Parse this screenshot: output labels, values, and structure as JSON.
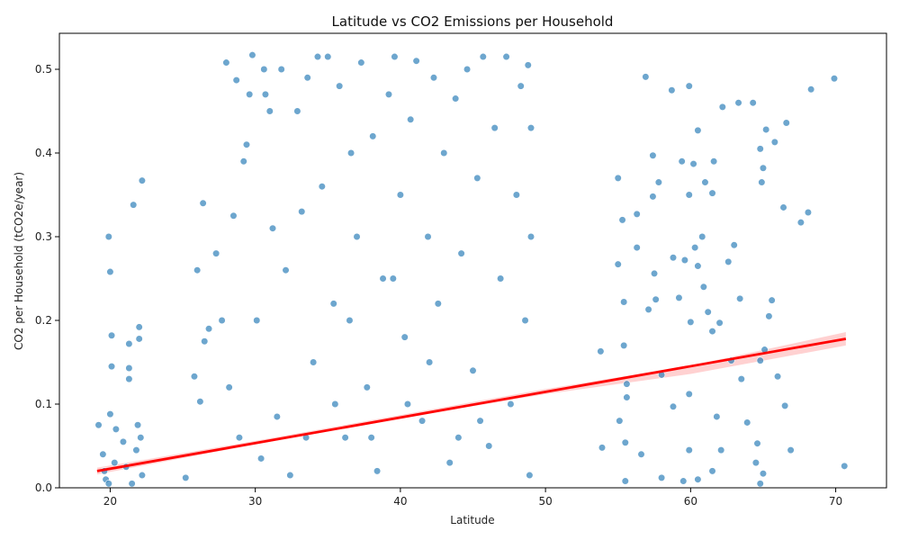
{
  "chart_data": {
    "type": "scatter",
    "title": "Latitude vs CO2 Emissions per Household",
    "xlabel": "Latitude",
    "ylabel": "CO2 per Household (tCO2e/year)",
    "xlim": [
      16.5,
      73.5
    ],
    "ylim": [
      0.0,
      0.543
    ],
    "x_ticks": [
      20,
      30,
      40,
      50,
      60,
      70
    ],
    "y_ticks": [
      0.0,
      0.1,
      0.2,
      0.3,
      0.4,
      0.5
    ],
    "grid": false,
    "legend": "none",
    "colors": {
      "points": "#1f77b4",
      "trend_line": "#ff0000",
      "confidence_band": "#ff9999"
    },
    "trend_line": {
      "x": [
        19.1,
        70.7
      ],
      "y": [
        0.02,
        0.178
      ]
    },
    "confidence_band": {
      "x": [
        19.1,
        30,
        40,
        50,
        60,
        70.7
      ],
      "lower": [
        0.016,
        0.052,
        0.083,
        0.112,
        0.136,
        0.17
      ],
      "upper": [
        0.024,
        0.056,
        0.087,
        0.118,
        0.146,
        0.186
      ]
    },
    "series": [
      {
        "values": [
          [
            19.2,
            0.075
          ],
          [
            19.5,
            0.04
          ],
          [
            19.6,
            0.02
          ],
          [
            19.7,
            0.01
          ],
          [
            19.9,
            0.3
          ],
          [
            20.0,
            0.258
          ],
          [
            20.1,
            0.182
          ],
          [
            20.1,
            0.145
          ],
          [
            20.0,
            0.088
          ],
          [
            20.4,
            0.07
          ],
          [
            20.3,
            0.03
          ],
          [
            19.9,
            0.005
          ],
          [
            20.9,
            0.055
          ],
          [
            21.1,
            0.025
          ],
          [
            21.3,
            0.172
          ],
          [
            21.3,
            0.143
          ],
          [
            21.3,
            0.13
          ],
          [
            21.6,
            0.338
          ],
          [
            21.8,
            0.045
          ],
          [
            21.9,
            0.075
          ],
          [
            22.0,
            0.192
          ],
          [
            22.0,
            0.178
          ],
          [
            22.2,
            0.367
          ],
          [
            22.1,
            0.06
          ],
          [
            22.2,
            0.015
          ],
          [
            21.5,
            0.005
          ],
          [
            25.2,
            0.012
          ],
          [
            25.8,
            0.133
          ],
          [
            26.0,
            0.26
          ],
          [
            26.2,
            0.103
          ],
          [
            26.4,
            0.34
          ],
          [
            26.5,
            0.175
          ],
          [
            26.8,
            0.19
          ],
          [
            27.3,
            0.28
          ],
          [
            27.7,
            0.2
          ],
          [
            28.0,
            0.508
          ],
          [
            28.2,
            0.12
          ],
          [
            28.5,
            0.325
          ],
          [
            28.7,
            0.487
          ],
          [
            28.9,
            0.06
          ],
          [
            29.2,
            0.39
          ],
          [
            29.4,
            0.41
          ],
          [
            29.6,
            0.47
          ],
          [
            29.8,
            0.517
          ],
          [
            30.1,
            0.2
          ],
          [
            30.4,
            0.035
          ],
          [
            30.6,
            0.5
          ],
          [
            30.7,
            0.47
          ],
          [
            31.0,
            0.45
          ],
          [
            31.2,
            0.31
          ],
          [
            31.5,
            0.085
          ],
          [
            31.8,
            0.5
          ],
          [
            32.1,
            0.26
          ],
          [
            32.4,
            0.015
          ],
          [
            32.9,
            0.45
          ],
          [
            33.2,
            0.33
          ],
          [
            33.6,
            0.49
          ],
          [
            34.0,
            0.15
          ],
          [
            34.3,
            0.515
          ],
          [
            34.6,
            0.36
          ],
          [
            35.0,
            0.515
          ],
          [
            35.4,
            0.22
          ],
          [
            35.8,
            0.48
          ],
          [
            36.2,
            0.06
          ],
          [
            36.6,
            0.4
          ],
          [
            37.0,
            0.3
          ],
          [
            37.3,
            0.508
          ],
          [
            37.7,
            0.12
          ],
          [
            38.1,
            0.42
          ],
          [
            38.4,
            0.02
          ],
          [
            38.8,
            0.25
          ],
          [
            39.2,
            0.47
          ],
          [
            39.6,
            0.515
          ],
          [
            40.0,
            0.35
          ],
          [
            40.3,
            0.18
          ],
          [
            40.7,
            0.44
          ],
          [
            41.1,
            0.51
          ],
          [
            41.5,
            0.08
          ],
          [
            41.9,
            0.3
          ],
          [
            42.3,
            0.49
          ],
          [
            42.6,
            0.22
          ],
          [
            43.0,
            0.4
          ],
          [
            43.4,
            0.03
          ],
          [
            43.8,
            0.465
          ],
          [
            44.2,
            0.28
          ],
          [
            44.6,
            0.5
          ],
          [
            45.0,
            0.14
          ],
          [
            45.3,
            0.37
          ],
          [
            45.7,
            0.515
          ],
          [
            46.1,
            0.05
          ],
          [
            46.5,
            0.43
          ],
          [
            46.9,
            0.25
          ],
          [
            47.3,
            0.515
          ],
          [
            47.6,
            0.1
          ],
          [
            48.0,
            0.35
          ],
          [
            48.3,
            0.48
          ],
          [
            48.6,
            0.2
          ],
          [
            48.8,
            0.505
          ],
          [
            48.9,
            0.015
          ],
          [
            49.0,
            0.3
          ],
          [
            49.0,
            0.43
          ],
          [
            35.5,
            0.1
          ],
          [
            40.5,
            0.1
          ],
          [
            44.0,
            0.06
          ],
          [
            38.0,
            0.06
          ],
          [
            42.0,
            0.15
          ],
          [
            33.5,
            0.06
          ],
          [
            36.5,
            0.2
          ],
          [
            39.5,
            0.25
          ],
          [
            45.5,
            0.08
          ],
          [
            53.8,
            0.163
          ],
          [
            53.9,
            0.048
          ],
          [
            55.0,
            0.37
          ],
          [
            55.0,
            0.267
          ],
          [
            55.1,
            0.08
          ],
          [
            55.3,
            0.32
          ],
          [
            55.4,
            0.17
          ],
          [
            55.4,
            0.222
          ],
          [
            55.5,
            0.054
          ],
          [
            55.6,
            0.108
          ],
          [
            55.6,
            0.124
          ],
          [
            55.5,
            0.008
          ],
          [
            56.3,
            0.327
          ],
          [
            56.3,
            0.287
          ],
          [
            56.6,
            0.04
          ],
          [
            56.9,
            0.491
          ],
          [
            57.1,
            0.213
          ],
          [
            57.4,
            0.397
          ],
          [
            57.4,
            0.348
          ],
          [
            57.5,
            0.256
          ],
          [
            57.6,
            0.225
          ],
          [
            57.8,
            0.365
          ],
          [
            58.0,
            0.135
          ],
          [
            58.7,
            0.475
          ],
          [
            58.8,
            0.275
          ],
          [
            58.8,
            0.097
          ],
          [
            59.2,
            0.227
          ],
          [
            59.4,
            0.39
          ],
          [
            59.6,
            0.272
          ],
          [
            59.9,
            0.48
          ],
          [
            59.9,
            0.35
          ],
          [
            59.9,
            0.112
          ],
          [
            59.9,
            0.045
          ],
          [
            60.0,
            0.198
          ],
          [
            60.2,
            0.387
          ],
          [
            60.3,
            0.287
          ],
          [
            60.5,
            0.427
          ],
          [
            60.5,
            0.265
          ],
          [
            60.8,
            0.3
          ],
          [
            60.9,
            0.24
          ],
          [
            61.0,
            0.365
          ],
          [
            61.2,
            0.21
          ],
          [
            61.5,
            0.352
          ],
          [
            61.5,
            0.187
          ],
          [
            61.6,
            0.39
          ],
          [
            61.8,
            0.085
          ],
          [
            62.0,
            0.197
          ],
          [
            62.1,
            0.045
          ],
          [
            62.2,
            0.455
          ],
          [
            62.6,
            0.27
          ],
          [
            62.8,
            0.152
          ],
          [
            63.0,
            0.29
          ],
          [
            63.3,
            0.46
          ],
          [
            63.4,
            0.226
          ],
          [
            63.5,
            0.13
          ],
          [
            63.9,
            0.078
          ],
          [
            64.3,
            0.46
          ],
          [
            64.6,
            0.053
          ],
          [
            64.8,
            0.152
          ],
          [
            64.8,
            0.405
          ],
          [
            64.9,
            0.365
          ],
          [
            65.0,
            0.382
          ],
          [
            65.1,
            0.165
          ],
          [
            65.2,
            0.428
          ],
          [
            65.4,
            0.205
          ],
          [
            65.6,
            0.224
          ],
          [
            65.8,
            0.413
          ],
          [
            66.0,
            0.133
          ],
          [
            66.4,
            0.335
          ],
          [
            66.5,
            0.098
          ],
          [
            66.6,
            0.436
          ],
          [
            66.9,
            0.045
          ],
          [
            67.6,
            0.317
          ],
          [
            68.1,
            0.329
          ],
          [
            68.3,
            0.476
          ],
          [
            69.9,
            0.489
          ],
          [
            70.6,
            0.026
          ],
          [
            64.5,
            0.03
          ],
          [
            64.8,
            0.005
          ],
          [
            65.0,
            0.017
          ],
          [
            61.5,
            0.02
          ],
          [
            60.5,
            0.01
          ],
          [
            59.5,
            0.008
          ],
          [
            58.0,
            0.012
          ]
        ]
      }
    ]
  }
}
